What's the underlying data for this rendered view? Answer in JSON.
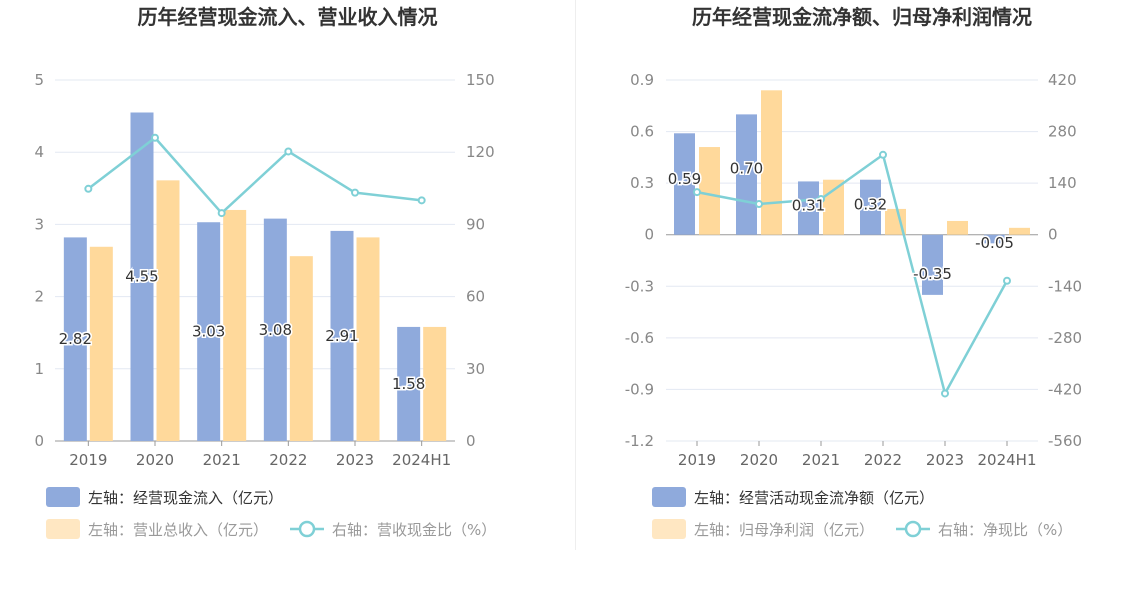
{
  "chart_data": [
    {
      "type": "bar",
      "title": "历年经营现金流入、营业收入情况",
      "categories": [
        "2019",
        "2020",
        "2021",
        "2022",
        "2023",
        "2024H1"
      ],
      "y_left": {
        "range": [
          0,
          5
        ],
        "ticks": [
          "0",
          "1",
          "2",
          "3",
          "4",
          "5"
        ],
        "values": [
          0,
          1,
          2,
          3,
          4,
          5
        ]
      },
      "y_right": {
        "range": [
          0,
          150
        ],
        "ticks": [
          "0",
          "30",
          "60",
          "90",
          "120",
          "150"
        ],
        "values": [
          0,
          30,
          60,
          90,
          120,
          150
        ]
      },
      "grid": true,
      "series": [
        {
          "name": "左轴：经营现金流入（亿元）",
          "kind": "bar",
          "axis": "left",
          "color": "#8faadc",
          "values": [
            2.82,
            4.55,
            3.03,
            3.08,
            2.91,
            1.58
          ],
          "labels": [
            "2.82",
            "4.55",
            "3.03",
            "3.08",
            "2.91",
            "1.58"
          ]
        },
        {
          "name": "左轴：营业总收入（亿元）",
          "kind": "bar",
          "axis": "left",
          "color": "#ffd99b",
          "values": [
            2.69,
            3.61,
            3.2,
            2.56,
            2.82,
            1.58
          ]
        },
        {
          "name": "右轴：营收现金比（%）",
          "kind": "line",
          "axis": "right",
          "color": "#7fd0d6",
          "values": [
            104.8,
            126.0,
            94.7,
            120.3,
            103.2,
            100.0
          ]
        }
      ],
      "legend": [
        {
          "label": "左轴：经营现金流入（亿元）",
          "kind": "bar",
          "color": "#8faadc",
          "active": true
        },
        {
          "label": "左轴：营业总收入（亿元）",
          "kind": "bar",
          "color": "#ffe7c2",
          "active": false
        },
        {
          "label": "右轴：营收现金比（%）",
          "kind": "line",
          "color": "#7fd0d6",
          "active": false
        }
      ],
      "legend_position": "bottom-left"
    },
    {
      "type": "bar",
      "title": "历年经营现金流净额、归母净利润情况",
      "categories": [
        "2019",
        "2020",
        "2021",
        "2022",
        "2023",
        "2024H1"
      ],
      "y_left": {
        "range": [
          -1.2,
          0.9
        ],
        "ticks": [
          "-1.2",
          "-0.9",
          "-0.6",
          "-0.3",
          "0",
          "0.3",
          "0.6",
          "0.9"
        ],
        "values": [
          -1.2,
          -0.9,
          -0.6,
          -0.3,
          0,
          0.3,
          0.6,
          0.9
        ]
      },
      "y_right": {
        "range": [
          -560,
          420
        ],
        "ticks": [
          "-560",
          "-420",
          "-280",
          "-140",
          "0",
          "140",
          "280",
          "420"
        ],
        "values": [
          -560,
          -420,
          -280,
          -140,
          0,
          140,
          280,
          420
        ]
      },
      "grid": true,
      "series": [
        {
          "name": "左轴：经营活动现金流净额（亿元）",
          "kind": "bar",
          "axis": "left",
          "color": "#8faadc",
          "values": [
            0.59,
            0.7,
            0.31,
            0.32,
            -0.35,
            -0.05
          ],
          "labels": [
            "0.59",
            "0.70",
            "0.31",
            "0.32",
            "-0.35",
            "-0.05"
          ]
        },
        {
          "name": "左轴：归母净利润（亿元）",
          "kind": "bar",
          "axis": "left",
          "color": "#ffd99b",
          "values": [
            0.51,
            0.84,
            0.32,
            0.15,
            0.08,
            0.04
          ]
        },
        {
          "name": "右轴：净现比（%）",
          "kind": "line",
          "axis": "right",
          "color": "#7fd0d6",
          "values": [
            115.7,
            83.3,
            96.9,
            217.0,
            -431.0,
            -125.0
          ]
        }
      ],
      "legend": [
        {
          "label": "左轴：经营活动现金流净额（亿元）",
          "kind": "bar",
          "color": "#8faadc",
          "active": true
        },
        {
          "label": "左轴：归母净利润（亿元）",
          "kind": "bar",
          "color": "#ffe7c2",
          "active": false
        },
        {
          "label": "右轴：净现比（%）",
          "kind": "line",
          "color": "#7fd0d6",
          "active": false
        }
      ],
      "legend_position": "bottom-left"
    }
  ]
}
